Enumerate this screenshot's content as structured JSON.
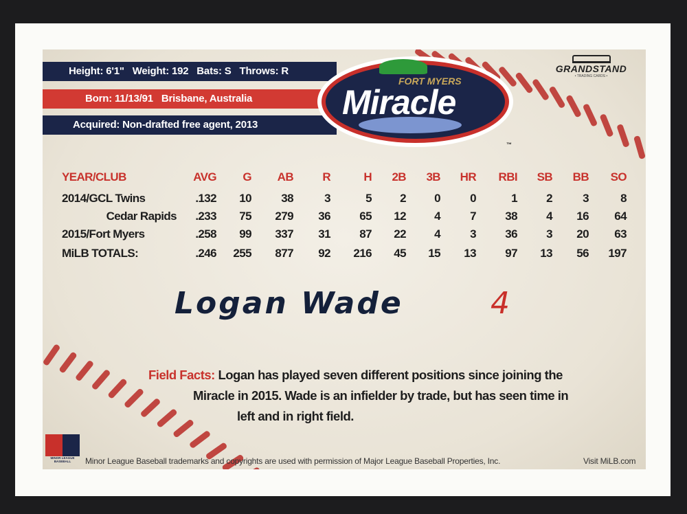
{
  "bio": {
    "line1": "Height: 6'1\"   Weight: 192   Bats: S   Throws: R",
    "line2": "Born: 11/13/91   Brisbane, Australia",
    "line3": "Acquired: Non-drafted free agent, 2013"
  },
  "logo": {
    "top": "FORT MYERS",
    "main": "Miracle",
    "tm": "™"
  },
  "brand": {
    "name": "GRANDSTAND",
    "sub": "• TRADING CARDS •"
  },
  "stats": {
    "headers": [
      "YEAR/CLUB",
      "AVG",
      "G",
      "AB",
      "R",
      "H",
      "2B",
      "3B",
      "HR",
      "RBI",
      "SB",
      "BB",
      "SO"
    ],
    "rows": [
      [
        "2014/GCL Twins",
        ".132",
        "10",
        "38",
        "3",
        "5",
        "2",
        "0",
        "0",
        "1",
        "2",
        "3",
        "8"
      ],
      [
        "Cedar Rapids",
        ".233",
        "75",
        "279",
        "36",
        "65",
        "12",
        "4",
        "7",
        "38",
        "4",
        "16",
        "64"
      ],
      [
        "2015/Fort Myers",
        ".258",
        "99",
        "337",
        "31",
        "87",
        "22",
        "4",
        "3",
        "36",
        "3",
        "20",
        "63"
      ],
      [
        "MiLB TOTALS:",
        ".246",
        "255",
        "877",
        "92",
        "216",
        "45",
        "15",
        "13",
        "97",
        "13",
        "56",
        "197"
      ]
    ]
  },
  "player": {
    "name": "Logan Wade",
    "number": "4"
  },
  "facts": {
    "label": "Field Facts:",
    "line1": "Logan has played seven different positions since joining the",
    "line2": "Miracle in 2015. Wade is an infielder by trade, but has seen time in",
    "line3": "left and in right field."
  },
  "footer": {
    "milb_logo": "MINOR LEAGUE BASEBALL",
    "legal": "Minor League Baseball trademarks and copyrights are used  with permission of Major League Baseball Properties, Inc.",
    "visit": "Visit MiLB.com"
  },
  "colors": {
    "navy": "#1b2548",
    "red": "#d23a33",
    "header_red": "#c8322c"
  }
}
